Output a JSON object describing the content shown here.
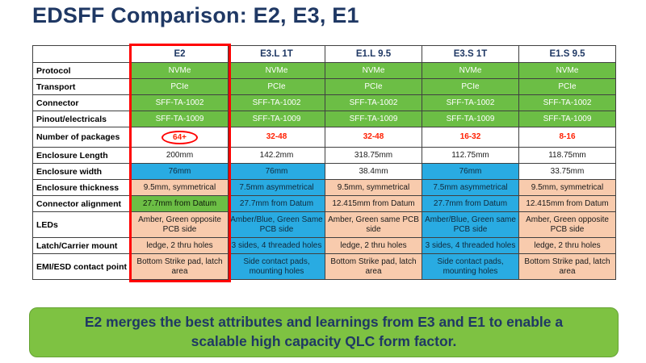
{
  "title": "EDSFF Comparison: E2, E3, E1",
  "colors": {
    "table_green": "#6CBE45",
    "table_blue": "#29ABE2",
    "table_tan": "#F8CBAD",
    "highlight_red": "#FF0000",
    "title_navy": "#1F3864",
    "footer_green": "#7EC242"
  },
  "table": {
    "columns": [
      "E2",
      "E3.L 1T",
      "E1.L 9.5",
      "E3.S 1T",
      "E1.S 9.5"
    ],
    "highlighted_column": "E2",
    "rows": [
      {
        "label": "Protocol",
        "cells": [
          {
            "text": "NVMe",
            "style": "green"
          },
          {
            "text": "NVMe",
            "style": "green"
          },
          {
            "text": "NVMe",
            "style": "green"
          },
          {
            "text": "NVMe",
            "style": "green"
          },
          {
            "text": "NVMe",
            "style": "green"
          }
        ]
      },
      {
        "label": "Transport",
        "cells": [
          {
            "text": "PCIe",
            "style": "green"
          },
          {
            "text": "PCIe",
            "style": "green"
          },
          {
            "text": "PCIe",
            "style": "green"
          },
          {
            "text": "PCIe",
            "style": "green"
          },
          {
            "text": "PCIe",
            "style": "green"
          }
        ]
      },
      {
        "label": "Connector",
        "cells": [
          {
            "text": "SFF-TA-1002",
            "style": "green"
          },
          {
            "text": "SFF-TA-1002",
            "style": "green"
          },
          {
            "text": "SFF-TA-1002",
            "style": "green"
          },
          {
            "text": "SFF-TA-1002",
            "style": "green"
          },
          {
            "text": "SFF-TA-1002",
            "style": "green"
          }
        ]
      },
      {
        "label": "Pinout/electricals",
        "cells": [
          {
            "text": "SFF-TA-1009",
            "style": "green"
          },
          {
            "text": "SFF-TA-1009",
            "style": "green"
          },
          {
            "text": "SFF-TA-1009",
            "style": "green"
          },
          {
            "text": "SFF-TA-1009",
            "style": "green"
          },
          {
            "text": "SFF-TA-1009",
            "style": "green"
          }
        ]
      },
      {
        "label": "Number of packages",
        "cells": [
          {
            "text": "64+",
            "style": "red-text",
            "circled": true
          },
          {
            "text": "32-48",
            "style": "red-text"
          },
          {
            "text": "32-48",
            "style": "red-text"
          },
          {
            "text": "16-32",
            "style": "red-text"
          },
          {
            "text": "8-16",
            "style": "red-text"
          }
        ]
      },
      {
        "label": "Enclosure Length",
        "cells": [
          {
            "text": "200mm",
            "style": "white"
          },
          {
            "text": "142.2mm",
            "style": "white"
          },
          {
            "text": "318.75mm",
            "style": "white"
          },
          {
            "text": "112.75mm",
            "style": "white"
          },
          {
            "text": "118.75mm",
            "style": "white"
          }
        ]
      },
      {
        "label": "Enclosure width",
        "cells": [
          {
            "text": "76mm",
            "style": "blue"
          },
          {
            "text": "76mm",
            "style": "blue"
          },
          {
            "text": "38.4mm",
            "style": "white"
          },
          {
            "text": "76mm",
            "style": "blue"
          },
          {
            "text": "33.75mm",
            "style": "white"
          }
        ]
      },
      {
        "label": "Enclosure thickness",
        "cells": [
          {
            "text": "9.5mm, symmetrical",
            "style": "tan"
          },
          {
            "text": "7.5mm asymmetrical",
            "style": "blue"
          },
          {
            "text": "9.5mm, symmetrical",
            "style": "tan"
          },
          {
            "text": "7.5mm asymmetrical",
            "style": "blue"
          },
          {
            "text": "9.5mm, symmetrical",
            "style": "tan"
          }
        ]
      },
      {
        "label": "Connector alignment",
        "cells": [
          {
            "text": "27.7mm from Datum",
            "style": "green-dark"
          },
          {
            "text": "27.7mm from Datum",
            "style": "blue"
          },
          {
            "text": "12.415mm from Datum",
            "style": "tan"
          },
          {
            "text": "27.7mm from Datum",
            "style": "blue"
          },
          {
            "text": "12.415mm from Datum",
            "style": "tan"
          }
        ]
      },
      {
        "label": "LEDs",
        "cells": [
          {
            "text": "Amber, Green opposite PCB side",
            "style": "tan"
          },
          {
            "text": "Amber/Blue, Green Same PCB side",
            "style": "blue"
          },
          {
            "text": "Amber, Green same PCB side",
            "style": "tan"
          },
          {
            "text": "Amber/Blue, Green same PCB side",
            "style": "blue"
          },
          {
            "text": "Amber, Green opposite PCB side",
            "style": "tan"
          }
        ]
      },
      {
        "label": "Latch/Carrier mount",
        "cells": [
          {
            "text": "ledge, 2 thru holes",
            "style": "tan"
          },
          {
            "text": "3 sides, 4 threaded holes",
            "style": "blue"
          },
          {
            "text": "ledge, 2 thru holes",
            "style": "tan"
          },
          {
            "text": "3 sides, 4 threaded holes",
            "style": "blue"
          },
          {
            "text": "ledge, 2 thru holes",
            "style": "tan"
          }
        ]
      },
      {
        "label": "EMI/ESD contact point",
        "cells": [
          {
            "text": "Bottom Strike pad, latch area",
            "style": "tan"
          },
          {
            "text": "Side contact pads, mounting holes",
            "style": "blue"
          },
          {
            "text": "Bottom Strike pad, latch area",
            "style": "tan"
          },
          {
            "text": "Side contact pads, mounting holes",
            "style": "blue"
          },
          {
            "text": "Bottom Strike pad, latch area",
            "style": "tan"
          }
        ]
      }
    ]
  },
  "footer": {
    "text": "E2 merges the best attributes and learnings from E3 and E1 to enable a scalable high capacity QLC form factor."
  }
}
